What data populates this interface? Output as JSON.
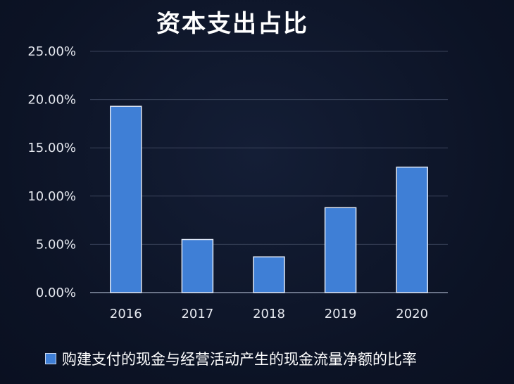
{
  "chart_data": {
    "type": "bar",
    "title": "资本支出占比",
    "categories": [
      "2016",
      "2017",
      "2018",
      "2019",
      "2020"
    ],
    "series": [
      {
        "name": "购建支付的现金与经营活动产生的现金流量净额的比率",
        "values": [
          19.3,
          5.5,
          3.7,
          8.8,
          13.0
        ]
      }
    ],
    "yticks": [
      "0.00%",
      "5.00%",
      "10.00%",
      "15.00%",
      "20.00%",
      "25.00%"
    ],
    "ylim": [
      0,
      25
    ],
    "xlabel": "",
    "ylabel": "",
    "legend_position": "bottom",
    "colors": {
      "bar": "#3f7fd6",
      "bar_border": "#dfe7f5",
      "grid": "#3a435a",
      "axis": "#8a93a8"
    }
  }
}
